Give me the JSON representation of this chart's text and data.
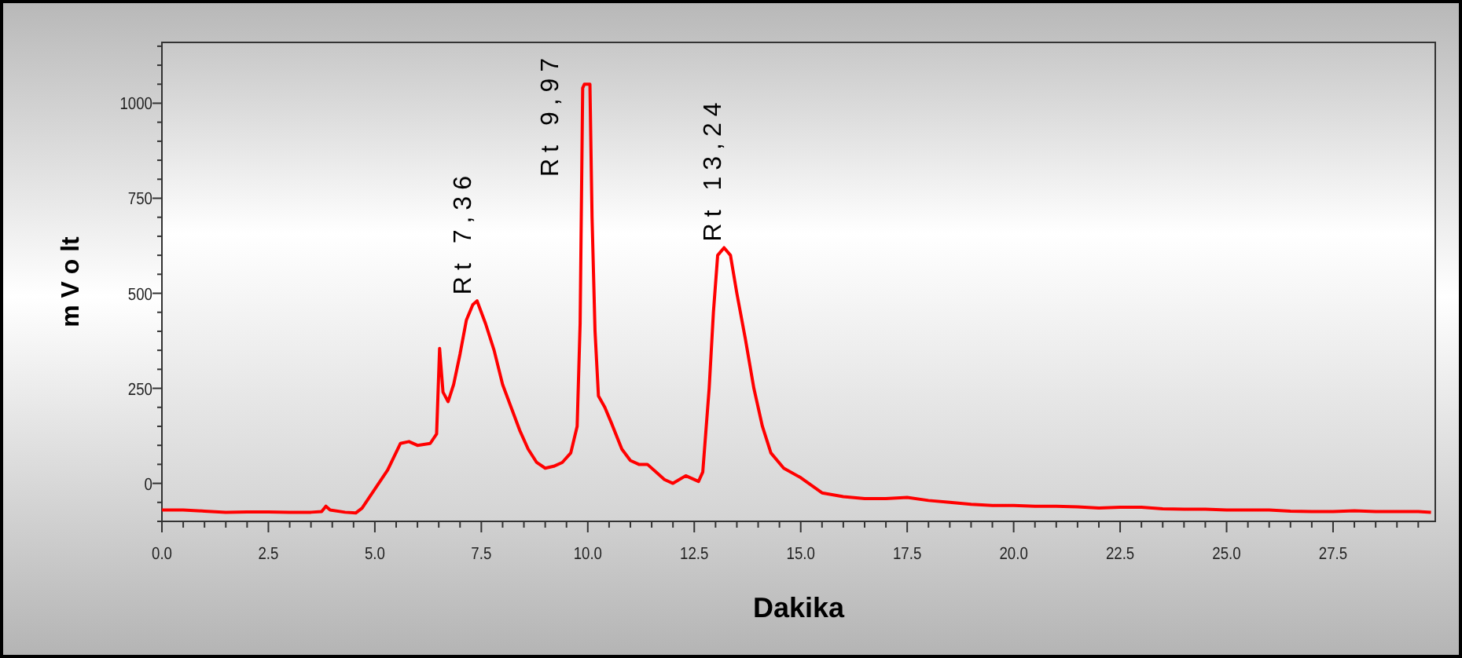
{
  "chart_data": {
    "type": "line",
    "xlabel": "Dakika",
    "ylabel": "m V o lt",
    "xlim": [
      0,
      29.9
    ],
    "ylim": [
      -100,
      1160
    ],
    "xticks": [
      {
        "value": 0,
        "label": "0.0"
      },
      {
        "value": 2.5,
        "label": "2.5"
      },
      {
        "value": 5,
        "label": "5.0"
      },
      {
        "value": 7.5,
        "label": "7.5"
      },
      {
        "value": 10,
        "label": "10.0"
      },
      {
        "value": 12.5,
        "label": "12.5"
      },
      {
        "value": 15,
        "label": "15.0"
      },
      {
        "value": 17.5,
        "label": "17.5"
      },
      {
        "value": 20,
        "label": "20.0"
      },
      {
        "value": 22.5,
        "label": "22.5"
      },
      {
        "value": 25,
        "label": "25.0"
      },
      {
        "value": 27.5,
        "label": "27.5"
      }
    ],
    "yticks": [
      0,
      250,
      500,
      750,
      1000
    ],
    "grid": false,
    "marker": "none",
    "line_style": "solid",
    "annotations": [
      {
        "text": "Rt 7,36",
        "x": 7.36,
        "y": 480
      },
      {
        "text": "Rt 9,97",
        "x": 9.97,
        "y": 1050
      },
      {
        "text": "Rt 13,24",
        "x": 13.24,
        "y": 620
      }
    ],
    "series": [
      {
        "color": "#ff0000",
        "x": [
          0,
          0.5,
          1,
          1.5,
          2,
          2.5,
          3,
          3.5,
          3.75,
          3.85,
          3.95,
          4.3,
          4.55,
          4.7,
          5,
          5.3,
          5.6,
          5.8,
          6,
          6.3,
          6.45,
          6.52,
          6.6,
          6.72,
          6.85,
          7,
          7.15,
          7.3,
          7.4,
          7.6,
          7.8,
          8,
          8.2,
          8.4,
          8.6,
          8.8,
          9,
          9.2,
          9.4,
          9.6,
          9.75,
          9.82,
          9.88,
          9.92,
          10.05,
          10.1,
          10.17,
          10.25,
          10.4,
          10.55,
          10.8,
          11,
          11.2,
          11.4,
          11.6,
          11.8,
          12,
          12.3,
          12.6,
          12.7,
          12.85,
          12.95,
          13.05,
          13.2,
          13.35,
          13.5,
          13.7,
          13.9,
          14.1,
          14.3,
          14.6,
          15,
          15.5,
          16,
          16.5,
          17,
          17.5,
          18,
          18.5,
          19,
          19.5,
          20,
          20.5,
          21,
          21.5,
          22,
          22.5,
          23,
          23.5,
          24,
          24.5,
          25,
          25.5,
          26,
          26.5,
          27,
          27.5,
          28,
          28.5,
          29,
          29.5,
          29.8
        ],
        "values": [
          -70,
          -70,
          -73,
          -76,
          -75,
          -75,
          -76,
          -76,
          -74,
          -60,
          -70,
          -76,
          -78,
          -65,
          -15,
          35,
          105,
          110,
          100,
          105,
          130,
          355,
          240,
          215,
          260,
          340,
          430,
          470,
          480,
          420,
          350,
          260,
          200,
          140,
          90,
          55,
          40,
          45,
          55,
          80,
          150,
          420,
          1040,
          1050,
          1050,
          700,
          400,
          230,
          200,
          160,
          90,
          60,
          50,
          50,
          30,
          10,
          0,
          20,
          5,
          30,
          250,
          450,
          600,
          620,
          600,
          500,
          380,
          250,
          150,
          80,
          40,
          15,
          -25,
          -35,
          -40,
          -40,
          -37,
          -45,
          -50,
          -55,
          -58,
          -58,
          -60,
          -60,
          -62,
          -65,
          -63,
          -63,
          -67,
          -68,
          -68,
          -70,
          -70,
          -70,
          -73,
          -74,
          -74,
          -72,
          -74,
          -74,
          -74,
          -76
        ]
      }
    ]
  }
}
